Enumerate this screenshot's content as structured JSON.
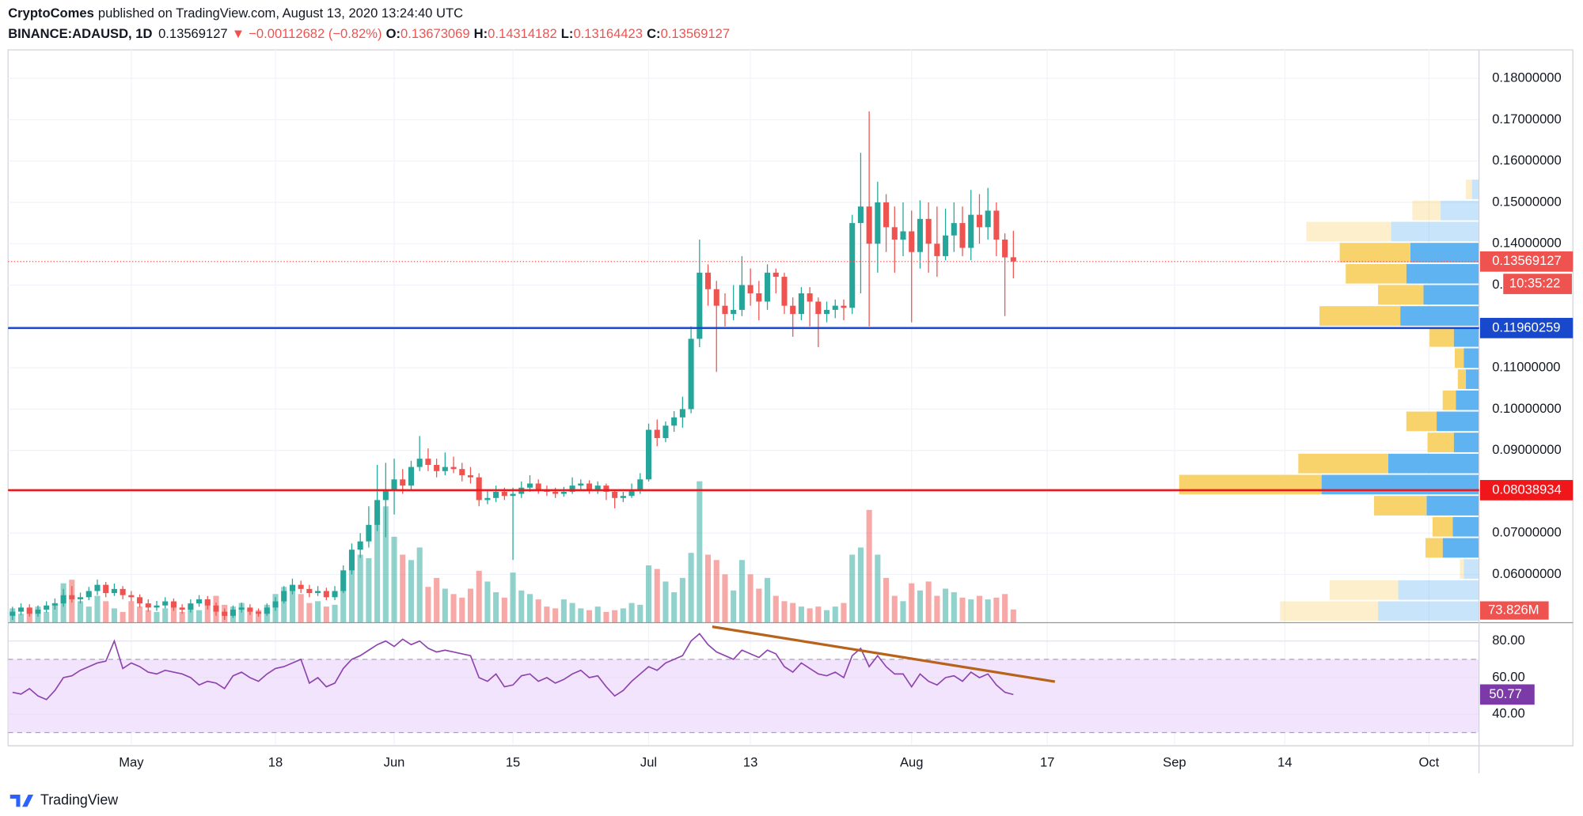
{
  "header": {
    "author": "CryptoComes",
    "published": "published on TradingView.com, August 13, 2020 13:24:40 UTC",
    "symbol": "BINANCE:ADAUSD, 1D",
    "arrow": "▼",
    "change": "−0.00112682 (−0.82%)",
    "o_label": "O:",
    "h_label": "H:",
    "l_label": "L:",
    "c_label": "C:",
    "countdown": "10:35:22",
    "brand": "TradingView"
  },
  "chart_data": {
    "type": "candlestick",
    "open": [
      0.05,
      0.051,
      0.052,
      0.0505,
      0.0515,
      0.0525,
      0.053,
      0.055,
      0.054,
      0.0545,
      0.056,
      0.0575,
      0.0555,
      0.0565,
      0.055,
      0.0545,
      0.053,
      0.052,
      0.0525,
      0.0535,
      0.052,
      0.0515,
      0.053,
      0.054,
      0.0525,
      0.051,
      0.05,
      0.0515,
      0.052,
      0.051,
      0.0505,
      0.052,
      0.0535,
      0.056,
      0.0575,
      0.0565,
      0.0555,
      0.056,
      0.0545,
      0.056,
      0.061,
      0.066,
      0.068,
      0.072,
      0.078,
      0.0805,
      0.083,
      0.0815,
      0.086,
      0.088,
      0.0865,
      0.085,
      0.086,
      0.0855,
      0.084,
      0.0835,
      0.078,
      0.0785,
      0.08,
      0.079,
      0.0795,
      0.081,
      0.082,
      0.0805,
      0.08,
      0.0795,
      0.08,
      0.0815,
      0.082,
      0.0805,
      0.0815,
      0.08,
      0.0785,
      0.079,
      0.0805,
      0.083,
      0.095,
      0.093,
      0.096,
      0.098,
      0.1,
      0.117,
      0.133,
      0.129,
      0.125,
      0.123,
      0.124,
      0.13,
      0.128,
      0.126,
      0.133,
      0.132,
      0.125,
      0.123,
      0.128,
      0.126,
      0.123,
      0.124,
      0.125,
      0.1245,
      0.145,
      0.149,
      0.14,
      0.15,
      0.144,
      0.141,
      0.143,
      0.138,
      0.146,
      0.14,
      0.137,
      0.142,
      0.145,
      0.139,
      0.147,
      0.144,
      0.148,
      0.141,
      0.13673069
    ],
    "high": [
      0.0522,
      0.053,
      0.0528,
      0.0525,
      0.0535,
      0.0542,
      0.0565,
      0.0572,
      0.0556,
      0.057,
      0.0588,
      0.0582,
      0.0578,
      0.0572,
      0.056,
      0.0552,
      0.054,
      0.0536,
      0.0545,
      0.0542,
      0.0528,
      0.054,
      0.055,
      0.0548,
      0.0532,
      0.0518,
      0.0525,
      0.0532,
      0.0528,
      0.0518,
      0.053,
      0.0545,
      0.0572,
      0.059,
      0.0585,
      0.0575,
      0.0572,
      0.0568,
      0.0572,
      0.0622,
      0.0675,
      0.07,
      0.0765,
      0.0865,
      0.087,
      0.088,
      0.0855,
      0.0875,
      0.0935,
      0.0905,
      0.088,
      0.0895,
      0.0885,
      0.087,
      0.086,
      0.0845,
      0.0805,
      0.0815,
      0.081,
      0.081,
      0.0825,
      0.084,
      0.083,
      0.0815,
      0.081,
      0.0812,
      0.0835,
      0.083,
      0.0828,
      0.0825,
      0.082,
      0.0805,
      0.08,
      0.082,
      0.0845,
      0.0965,
      0.0975,
      0.097,
      0.0995,
      0.103,
      0.12,
      0.141,
      0.135,
      0.131,
      0.128,
      0.13,
      0.137,
      0.134,
      0.131,
      0.135,
      0.134,
      0.133,
      0.127,
      0.1295,
      0.1295,
      0.127,
      0.126,
      0.1265,
      0.1265,
      0.147,
      0.162,
      0.172,
      0.155,
      0.152,
      0.149,
      0.15,
      0.148,
      0.1505,
      0.15,
      0.149,
      0.1485,
      0.15,
      0.149,
      0.153,
      0.152,
      0.1535,
      0.15,
      0.1425,
      0.14314182
    ],
    "low": [
      0.049,
      0.0502,
      0.0498,
      0.0498,
      0.0508,
      0.0515,
      0.0522,
      0.0532,
      0.053,
      0.0538,
      0.055,
      0.0545,
      0.0548,
      0.054,
      0.0535,
      0.052,
      0.051,
      0.0512,
      0.0518,
      0.0512,
      0.0505,
      0.0508,
      0.0522,
      0.0515,
      0.05,
      0.049,
      0.0495,
      0.0508,
      0.0502,
      0.0498,
      0.05,
      0.0512,
      0.053,
      0.0552,
      0.0555,
      0.0545,
      0.0548,
      0.0538,
      0.0538,
      0.0555,
      0.06,
      0.064,
      0.0665,
      0.0705,
      0.069,
      0.0745,
      0.0795,
      0.0805,
      0.085,
      0.085,
      0.0835,
      0.084,
      0.0845,
      0.0825,
      0.082,
      0.0765,
      0.077,
      0.0775,
      0.078,
      0.0635,
      0.0785,
      0.08,
      0.0795,
      0.079,
      0.0785,
      0.0788,
      0.0795,
      0.0805,
      0.0795,
      0.0795,
      0.078,
      0.076,
      0.0775,
      0.0785,
      0.0795,
      0.0825,
      0.091,
      0.092,
      0.0945,
      0.0955,
      0.099,
      0.115,
      0.125,
      0.109,
      0.12,
      0.1215,
      0.1225,
      0.125,
      0.1215,
      0.124,
      0.128,
      0.123,
      0.1175,
      0.1215,
      0.12,
      0.115,
      0.121,
      0.122,
      0.1215,
      0.123,
      0.128,
      0.12,
      0.133,
      0.138,
      0.133,
      0.137,
      0.121,
      0.134,
      0.133,
      0.132,
      0.136,
      0.138,
      0.137,
      0.136,
      0.14,
      0.141,
      0.137,
      0.1225,
      0.13164423
    ],
    "close": [
      0.051,
      0.052,
      0.0505,
      0.0515,
      0.0525,
      0.053,
      0.055,
      0.054,
      0.0545,
      0.056,
      0.0575,
      0.0555,
      0.0565,
      0.055,
      0.0545,
      0.053,
      0.052,
      0.0525,
      0.0535,
      0.052,
      0.0515,
      0.053,
      0.054,
      0.0525,
      0.051,
      0.05,
      0.0515,
      0.052,
      0.051,
      0.0505,
      0.052,
      0.0535,
      0.056,
      0.0575,
      0.0565,
      0.0555,
      0.056,
      0.0545,
      0.056,
      0.061,
      0.066,
      0.068,
      0.072,
      0.078,
      0.0805,
      0.083,
      0.0815,
      0.086,
      0.088,
      0.0865,
      0.085,
      0.086,
      0.0855,
      0.084,
      0.0835,
      0.078,
      0.0785,
      0.08,
      0.079,
      0.0795,
      0.081,
      0.082,
      0.0805,
      0.08,
      0.0795,
      0.08,
      0.0815,
      0.082,
      0.0805,
      0.0815,
      0.08,
      0.0785,
      0.079,
      0.0805,
      0.083,
      0.095,
      0.093,
      0.096,
      0.098,
      0.1,
      0.117,
      0.133,
      0.129,
      0.125,
      0.123,
      0.124,
      0.13,
      0.128,
      0.126,
      0.133,
      0.132,
      0.125,
      0.123,
      0.128,
      0.126,
      0.123,
      0.124,
      0.125,
      0.1245,
      0.145,
      0.149,
      0.14,
      0.15,
      0.144,
      0.141,
      0.143,
      0.138,
      0.146,
      0.14,
      0.137,
      0.142,
      0.145,
      0.139,
      0.147,
      0.144,
      0.148,
      0.141,
      0.1367,
      0.13569127
    ],
    "volume": [
      80,
      50,
      70,
      90,
      60,
      110,
      220,
      240,
      120,
      90,
      150,
      120,
      80,
      60,
      120,
      90,
      70,
      60,
      80,
      110,
      60,
      90,
      70,
      120,
      150,
      100,
      90,
      110,
      80,
      70,
      100,
      160,
      200,
      180,
      160,
      110,
      120,
      90,
      100,
      180,
      300,
      380,
      360,
      560,
      650,
      480,
      380,
      350,
      420,
      200,
      250,
      190,
      160,
      140,
      190,
      290,
      230,
      170,
      140,
      280,
      180,
      160,
      130,
      90,
      80,
      130,
      110,
      80,
      70,
      90,
      60,
      70,
      80,
      110,
      100,
      320,
      300,
      230,
      170,
      250,
      390,
      790,
      380,
      350,
      270,
      180,
      350,
      270,
      190,
      250,
      150,
      120,
      110,
      90,
      80,
      90,
      70,
      90,
      110,
      380,
      420,
      630,
      380,
      250,
      150,
      120,
      220,
      180,
      230,
      150,
      190,
      170,
      140,
      130,
      150,
      130,
      140,
      160,
      73.826
    ],
    "volume_value_label": "73.826M",
    "xlim": [
      -0.524,
      172.9
    ],
    "xticks": [
      {
        "value": 14,
        "label": "May"
      },
      {
        "value": 31,
        "label": "18"
      },
      {
        "value": 45,
        "label": "Jun"
      },
      {
        "value": 59,
        "label": "15"
      },
      {
        "value": 75,
        "label": "Jul"
      },
      {
        "value": 87,
        "label": "13"
      },
      {
        "value": 106,
        "label": "Aug"
      },
      {
        "value": 122,
        "label": "17"
      },
      {
        "value": 137,
        "label": "Sep"
      },
      {
        "value": 150,
        "label": "14"
      },
      {
        "value": 167,
        "label": "Oct"
      }
    ],
    "ylim": [
      0.04834,
      0.18689
    ],
    "yticks": [
      {
        "value": 0.06,
        "label": "0.06000000"
      },
      {
        "value": 0.07,
        "label": "0.07000000"
      },
      {
        "value": 0.08,
        "label": "0.08000000"
      },
      {
        "value": 0.09,
        "label": "0.09000000"
      },
      {
        "value": 0.1,
        "label": "0.10000000"
      },
      {
        "value": 0.11,
        "label": "0.11000000"
      },
      {
        "value": 0.12,
        "label": "0.12000000"
      },
      {
        "value": 0.13,
        "label": "0.13000000"
      },
      {
        "value": 0.14,
        "label": "0.14000000"
      },
      {
        "value": 0.15,
        "label": "0.15000000"
      },
      {
        "value": 0.16,
        "label": "0.16000000"
      },
      {
        "value": 0.17,
        "label": "0.17000000"
      },
      {
        "value": 0.18,
        "label": "0.18000000"
      }
    ],
    "grid": true,
    "up_color": "#26a69a",
    "down_color": "#ef5350",
    "hlines": [
      {
        "value": 0.11960259,
        "color": "#1848cc"
      },
      {
        "value": 0.08038934,
        "color": "#f0171b"
      }
    ],
    "profile": {
      "bins": [
        0.0484,
        0.0535,
        0.0586,
        0.0637,
        0.0688,
        0.0739,
        0.079,
        0.0841,
        0.0892,
        0.0943,
        0.0994,
        0.1045,
        0.1096,
        0.1147,
        0.1198,
        0.1249,
        0.13,
        0.1351,
        0.1402,
        0.1453,
        0.1504,
        0.1555
      ],
      "up": [
        100,
        80,
        15,
        36,
        26,
        52,
        156,
        90,
        25,
        42,
        23,
        13,
        15,
        25,
        78,
        55,
        72,
        68,
        87,
        38,
        7
      ],
      "down": [
        97,
        68,
        4,
        17,
        20,
        52,
        141,
        89,
        26,
        30,
        13,
        8,
        9,
        24,
        80,
        45,
        60,
        70,
        84,
        28,
        6
      ],
      "faded": [
        true,
        true,
        true,
        false,
        false,
        false,
        false,
        false,
        false,
        false,
        false,
        false,
        false,
        false,
        false,
        false,
        false,
        false,
        true,
        true,
        true
      ],
      "up_color": "#5eb3f0",
      "down_color": "#f8d26a"
    },
    "rsi": {
      "values": [
        52,
        51,
        54,
        50,
        48,
        53,
        60,
        61,
        64,
        66,
        68,
        69,
        80,
        65,
        68,
        66,
        63,
        62,
        64,
        63,
        62,
        60,
        56,
        58,
        57,
        54,
        61,
        63,
        60,
        58,
        62,
        65,
        66,
        68,
        70,
        57,
        60,
        55,
        57,
        65,
        70,
        72,
        75,
        78,
        80,
        77,
        81,
        78,
        80,
        76,
        74,
        75,
        74,
        73,
        72,
        60,
        58,
        62,
        55,
        56,
        61,
        62,
        58,
        60,
        57,
        59,
        62,
        64,
        60,
        61,
        55,
        50,
        53,
        58,
        62,
        66,
        64,
        68,
        70,
        72,
        80,
        84,
        78,
        74,
        72,
        70,
        75,
        73,
        71,
        75,
        73,
        66,
        63,
        68,
        65,
        62,
        61,
        63,
        60,
        72,
        76,
        66,
        72,
        66,
        62,
        62,
        55,
        62,
        58,
        56,
        60,
        61,
        58,
        63,
        60,
        62,
        56,
        52,
        50.77
      ],
      "ylim": [
        23.33,
        90
      ],
      "yticks": [
        {
          "value": 40,
          "label": "40.00"
        },
        {
          "value": 60,
          "label": "60.00"
        },
        {
          "value": 80,
          "label": "80.00"
        }
      ],
      "bands": [
        30,
        70
      ],
      "color": "#8e44ad",
      "trendline": {
        "x": [
          82.5,
          122.9
        ],
        "y": [
          87.8,
          57.8
        ],
        "color": "#b8631c"
      }
    }
  }
}
